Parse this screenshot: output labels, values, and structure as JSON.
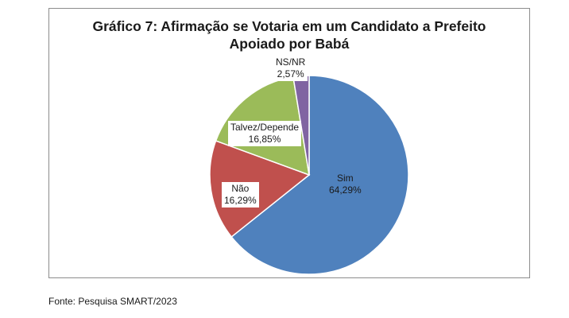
{
  "chart_data": {
    "type": "pie",
    "title_lines": [
      "Gráfico 7: Afirmação se Votaria em um Candidato a Prefeito",
      "Apoiado por Babá"
    ],
    "slices": [
      {
        "label": "Sim",
        "value": 64.29,
        "value_text": "64,29%",
        "color": "#4f81bd"
      },
      {
        "label": "Não",
        "value": 16.29,
        "value_text": "16,29%",
        "color": "#c0504d"
      },
      {
        "label": "Talvez/Depende",
        "value": 16.85,
        "value_text": "16,85%",
        "color": "#9bbb59"
      },
      {
        "label": "NS/NR",
        "value": 2.57,
        "value_text": "2,57%",
        "color": "#8064a2"
      }
    ],
    "start": "12 o'clock",
    "direction": "clockwise"
  },
  "source_text": "Fonte: Pesquisa SMART/2023"
}
